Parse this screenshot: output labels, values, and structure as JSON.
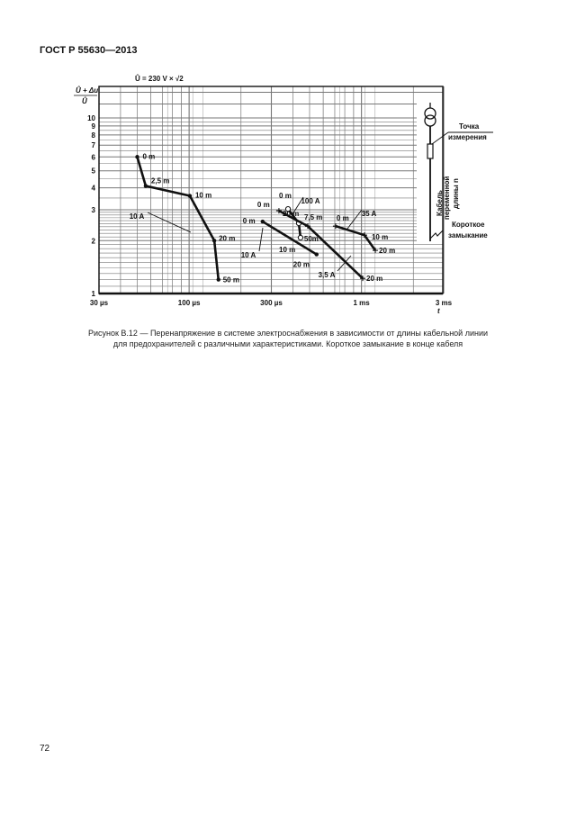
{
  "header": {
    "standard": "ГОСТ Р 55630—2013"
  },
  "figure": {
    "caption_line1": "Рисунок В.12 — Перенапряжение в системе электроснабжения в зависимости от длины кабельной линии",
    "caption_line2": "для предохранителей с различными характеристиками. Короткое замыкание в конце кабеля",
    "diagram": {
      "measure_point_line1": "Точка",
      "measure_point_line2": "измерения",
      "cable_line1": "Кабель",
      "cable_line2": "переменной",
      "cable_line3": "длины n",
      "short_circuit_line1": "Короткое",
      "short_circuit_line2": "замыкание"
    }
  },
  "chart_data": {
    "type": "line",
    "title": "Û = 230 V × √2",
    "ylabel_num": "Û + Δu",
    "ylabel_den": "Û",
    "xlabel": "t",
    "x_scale": "log",
    "y_scale": "log",
    "xlim_us": [
      30,
      3000
    ],
    "ylim": [
      1,
      15
    ],
    "grid": true,
    "x_ticks": [
      {
        "v": 30,
        "label": "30 µs"
      },
      {
        "v": 100,
        "label": "100 µs"
      },
      {
        "v": 300,
        "label": "300 µs"
      },
      {
        "v": 1000,
        "label": "1 ms"
      },
      {
        "v": 3000,
        "label": "3 ms"
      }
    ],
    "y_ticks": [
      {
        "v": 1,
        "label": "1"
      },
      {
        "v": 2,
        "label": "2"
      },
      {
        "v": 3,
        "label": "3"
      },
      {
        "v": 4,
        "label": "4"
      },
      {
        "v": 5,
        "label": "5"
      },
      {
        "v": 6,
        "label": "6"
      },
      {
        "v": 7,
        "label": "7"
      },
      {
        "v": 8,
        "label": "8"
      },
      {
        "v": 9,
        "label": "9"
      },
      {
        "v": 10,
        "label": "10"
      }
    ],
    "series": [
      {
        "name": "10 A",
        "marker": "dot",
        "points": [
          {
            "x": 50,
            "y": 6.0,
            "label": "0 m"
          },
          {
            "x": 56,
            "y": 4.1,
            "label": "2,5 m"
          },
          {
            "x": 101,
            "y": 3.6,
            "label": "10 m"
          },
          {
            "x": 140,
            "y": 2.0,
            "label": "20 m"
          },
          {
            "x": 148,
            "y": 1.2,
            "label": "50 m"
          }
        ]
      },
      {
        "name": "10 A",
        "marker": "dot",
        "points": [
          {
            "x": 267,
            "y": 2.57,
            "label": "0 m"
          },
          {
            "x": 549,
            "y": 1.67,
            "label": "20 m"
          }
        ],
        "inline_labels": [
          "10 m"
        ]
      },
      {
        "name": "100 A",
        "marker": "circle",
        "points": [
          {
            "x": 375,
            "y": 3.03,
            "label": "0 m"
          },
          {
            "x": 433,
            "y": 2.51,
            "label": "20 m"
          },
          {
            "x": 443,
            "y": 2.08,
            "label": "50m"
          }
        ]
      },
      {
        "name": "3,5 A",
        "marker": "plus",
        "points": [
          {
            "x": 332,
            "y": 2.96,
            "label": "0 m"
          },
          {
            "x": 488,
            "y": 2.42,
            "label": "7,5 m"
          },
          {
            "x": 1017,
            "y": 1.22,
            "label": "20 m"
          }
        ]
      },
      {
        "name": "35 A",
        "marker": "plus",
        "points": [
          {
            "x": 708,
            "y": 2.42,
            "label": "0 m"
          },
          {
            "x": 1041,
            "y": 2.15,
            "label": "10 m"
          },
          {
            "x": 1203,
            "y": 1.76,
            "label": "20 m"
          }
        ]
      }
    ]
  },
  "page": {
    "number": "72"
  }
}
